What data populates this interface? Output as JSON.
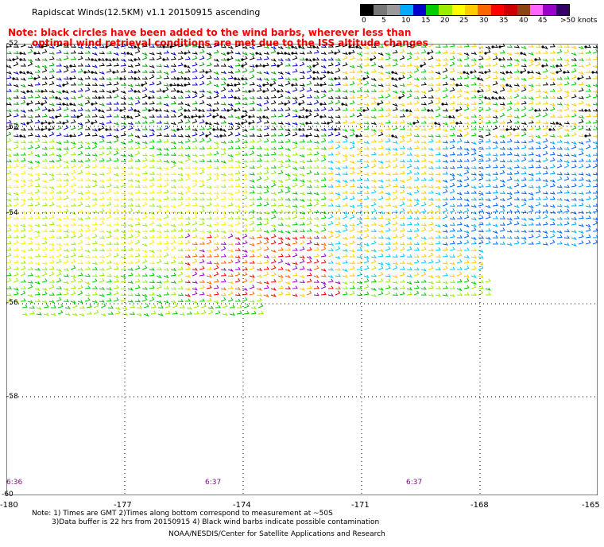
{
  "title": "Rapidscat Winds(12.5KM) v1.1 20150915 ascending",
  "note_lines": [
    "Note: black circles have been added to the wind barbs, wherever less than",
    "optimal wind retrieval conditions are met due to the ISS altitude changes"
  ],
  "colorbar": {
    "colors": [
      "#000000",
      "#777777",
      "#9a9a9a",
      "#00aaff",
      "#0000cc",
      "#00cc00",
      "#99ee00",
      "#ffff00",
      "#ffcc00",
      "#ff6600",
      "#ff0000",
      "#cc0000",
      "#8b4513",
      "#ff66ff",
      "#9900cc",
      "#330066"
    ],
    "labels": [
      "0",
      "5",
      "10",
      "15",
      "20",
      "25",
      "30",
      "35",
      "40",
      "45",
      ">50 knots"
    ]
  },
  "axes": {
    "y_labels": [
      "-52",
      "-52",
      "-54",
      "-56",
      "-58",
      "-60"
    ],
    "x_labels": [
      "-180",
      "-177",
      "-174",
      "-171",
      "-168",
      "-165"
    ]
  },
  "times": [
    "6:36",
    "6:37",
    "6:37"
  ],
  "footnote_lines": [
    "Note: 1) Times are GMT 2)Times along bottom correspond to measurement at ~50S",
    "3)Data buffer is 22 hrs from 20150915 4) Black wind barbs indicate possible contamination"
  ],
  "credit": "NOAA/NESDIS/Center for Satellite Applications and Research"
}
